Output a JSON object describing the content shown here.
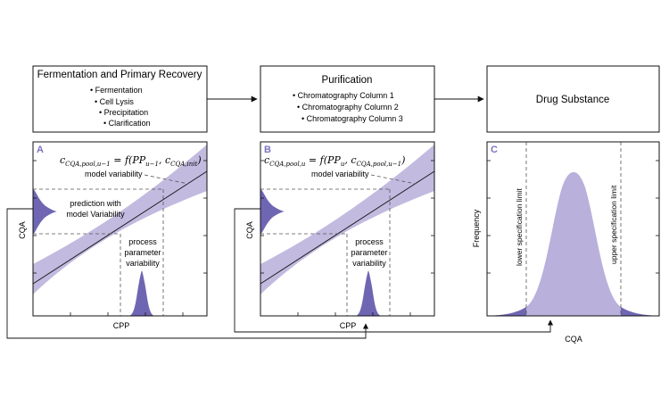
{
  "colors": {
    "band": "#b7aed9",
    "dist_dark": "#6f66b3",
    "dist_light": "#b9b0dc",
    "label_accent": "#7b72c0",
    "line": "#111111",
    "dash": "#555555"
  },
  "boxes": {
    "fermentation": {
      "title": "Fermentation and Primary Recovery",
      "items": [
        "Fermentation",
        "Cell Lysis",
        "Precipitation",
        "Clarification"
      ]
    },
    "purification": {
      "title": "Purification",
      "items": [
        "Chromatography Column 1",
        "Chromatography Column 2",
        "Chromatography Column 3"
      ]
    },
    "drug_substance": {
      "title": "Drug Substance"
    }
  },
  "panel_a": {
    "letter": "A",
    "equation": "c_{CQA,pool,u−1} = f(PP_{u−1}, c_{CQA,init})",
    "eq_main": "c",
    "eq_sub": "CQA,pool,u−1",
    "eq_rhs_a": " = f(PP",
    "eq_rhs_sub1": "u−1",
    "eq_rhs_b": ", c",
    "eq_rhs_sub2": "CQA,init",
    "eq_rhs_c": ")",
    "model_variability": "model variability",
    "prediction_line1": "prediction with",
    "prediction_line2": "model Variability",
    "process_line1": "process",
    "process_line2": "parameter",
    "process_line3": "variability",
    "ylabel": "CQA",
    "xlabel": "CPP"
  },
  "panel_b": {
    "letter": "B",
    "equation": "c_{CQA,pool,u} = f(PP_u, c_{CQA,pool,u−1})",
    "eq_main": "c",
    "eq_sub": "CQA,pool,u",
    "eq_rhs_a": " = f(PP",
    "eq_rhs_sub1": "u",
    "eq_rhs_b": ", c",
    "eq_rhs_sub2": "CQA,pool,u−1",
    "eq_rhs_c": ")",
    "model_variability": "model variability",
    "process_line1": "process",
    "process_line2": "parameter",
    "process_line3": "variability",
    "ylabel": "CQA",
    "xlabel": "CPP"
  },
  "panel_c": {
    "letter": "C",
    "lower_limit": "lower specification limit",
    "upper_limit": "upper specification limit",
    "ylabel": "Frequency",
    "xlabel": "CQA"
  }
}
